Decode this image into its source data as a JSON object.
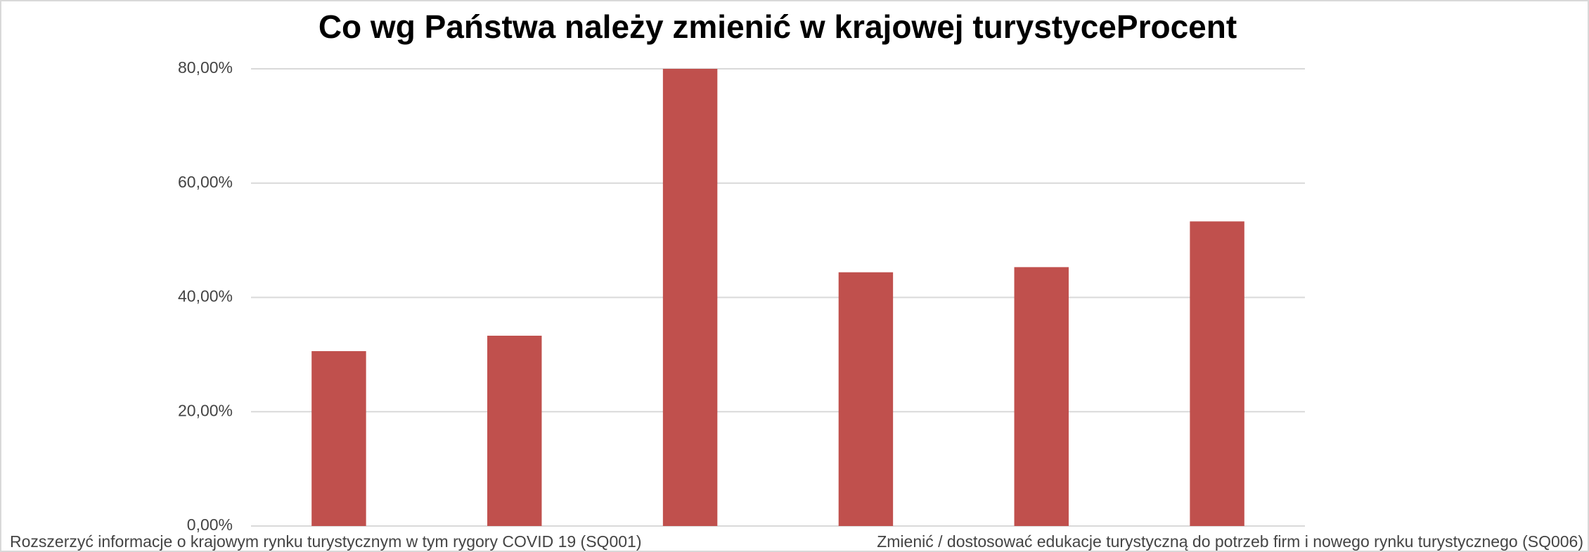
{
  "chart_data": {
    "type": "bar",
    "title": "Co wg Państwa należy zmienić w krajowej turystyceProcent",
    "categories": [
      "Rozszerzyć informacje o krajowym rynku turystycznym w tym rygory COVID 19 (SQ001)",
      null,
      null,
      null,
      null,
      "Zmienić / dostosować edukacje turystyczną do potrzeb firm i nowego rynku turystycznego (SQ006)"
    ],
    "values": [
      30.6,
      33.3,
      80,
      44.4,
      45.3,
      53.3
    ],
    "color": "#c0504d",
    "ylim": [
      0,
      80
    ],
    "yticks": [
      {
        "value": 0,
        "label": "0,00%"
      },
      {
        "value": 20,
        "label": "20,00%"
      },
      {
        "value": 40,
        "label": "40,00%"
      },
      {
        "value": 60,
        "label": "60,00%"
      },
      {
        "value": 80,
        "label": "80,00%"
      }
    ],
    "grid": true
  }
}
